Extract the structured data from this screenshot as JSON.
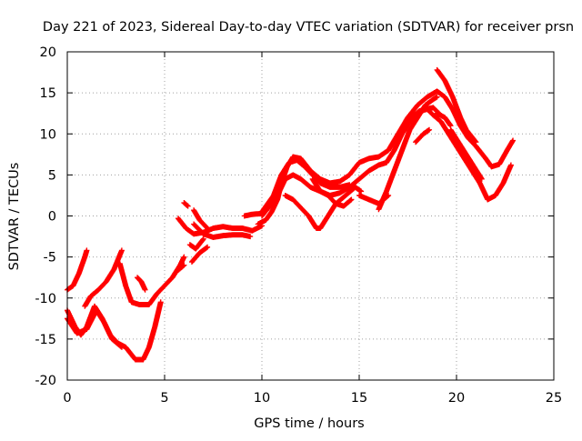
{
  "chart_data": {
    "type": "scatter",
    "title": "Day 221 of 2023, Sidereal Day-to-day VTEC variation (SDTVAR) for receiver prsn",
    "xlabel": "GPS time / hours",
    "ylabel": "SDTVAR / TECUs",
    "xlim": [
      0,
      25
    ],
    "ylim": [
      -20,
      20
    ],
    "xticks": [
      0,
      5,
      10,
      15,
      20,
      25
    ],
    "yticks": [
      -20,
      -15,
      -10,
      -5,
      0,
      5,
      10,
      15,
      20
    ],
    "grid": true,
    "marker": "+",
    "colors": {
      "series": "#ff0000",
      "axis": "#000000",
      "grid": "#a0a0a0"
    },
    "series": [
      {
        "points": [
          [
            0,
            -9
          ],
          [
            0.3,
            -8.5
          ],
          [
            0.6,
            -7
          ],
          [
            0.9,
            -5
          ],
          [
            1.0,
            -4.2
          ]
        ]
      },
      {
        "points": [
          [
            0,
            -11.5
          ],
          [
            0.4,
            -13.5
          ],
          [
            0.7,
            -14.5
          ],
          [
            1.0,
            -13.5
          ],
          [
            1.4,
            -11
          ],
          [
            1.8,
            -12.5
          ],
          [
            2.2,
            -14.5
          ],
          [
            2.6,
            -15.5
          ],
          [
            3.0,
            -16
          ],
          [
            3.5,
            -17.5
          ],
          [
            3.9,
            -17.5
          ],
          [
            4.2,
            -16
          ],
          [
            4.5,
            -13.5
          ],
          [
            4.8,
            -10.5
          ]
        ]
      },
      {
        "points": [
          [
            0,
            -12.5
          ],
          [
            0.5,
            -14.3
          ],
          [
            1.0,
            -13.8
          ],
          [
            1.5,
            -11.5
          ],
          [
            1.9,
            -13
          ],
          [
            2.3,
            -15
          ],
          [
            2.8,
            -16
          ]
        ]
      },
      {
        "points": [
          [
            0.9,
            -11
          ],
          [
            1.2,
            -9.8
          ],
          [
            1.6,
            -9
          ],
          [
            2.0,
            -8
          ],
          [
            2.4,
            -6.5
          ],
          [
            2.8,
            -4.2
          ]
        ]
      },
      {
        "points": [
          [
            2.7,
            -5.8
          ],
          [
            3.0,
            -8.5
          ],
          [
            3.3,
            -10.5
          ],
          [
            3.7,
            -10.8
          ],
          [
            4.2,
            -10.8
          ],
          [
            4.6,
            -9.5
          ],
          [
            5.0,
            -8.5
          ],
          [
            5.4,
            -7.5
          ],
          [
            5.8,
            -6
          ],
          [
            6.0,
            -5
          ]
        ]
      },
      {
        "points": [
          [
            3.6,
            -7.5
          ],
          [
            3.8,
            -8
          ],
          [
            4.0,
            -9
          ]
        ]
      },
      {
        "points": [
          [
            5.7,
            -6.6
          ],
          [
            6.0,
            -6
          ]
        ]
      },
      {
        "points": [
          [
            6.0,
            1.6
          ],
          [
            6.2,
            1.2
          ]
        ]
      },
      {
        "points": [
          [
            5.7,
            -0.3
          ],
          [
            6.1,
            -1.5
          ],
          [
            6.5,
            -2.2
          ],
          [
            7.0,
            -2
          ],
          [
            7.5,
            -1.5
          ],
          [
            8.0,
            -1.3
          ],
          [
            8.5,
            -1.5
          ],
          [
            9.0,
            -1.5
          ],
          [
            9.5,
            -1.8
          ],
          [
            10.0,
            -1.2
          ]
        ]
      },
      {
        "points": [
          [
            6.5,
            -1
          ],
          [
            7.0,
            -2.2
          ],
          [
            7.5,
            -2.6
          ],
          [
            8.0,
            -2.4
          ],
          [
            8.5,
            -2.3
          ],
          [
            9.0,
            -2.3
          ],
          [
            9.4,
            -2.5
          ]
        ]
      },
      {
        "points": [
          [
            6.3,
            -3.5
          ],
          [
            6.6,
            -4
          ],
          [
            7.0,
            -2.8
          ]
        ]
      },
      {
        "points": [
          [
            6.4,
            -5.6
          ],
          [
            6.8,
            -4.5
          ],
          [
            7.2,
            -3.8
          ]
        ]
      },
      {
        "points": [
          [
            6.5,
            0.7
          ],
          [
            6.8,
            -0.5
          ],
          [
            7.2,
            -1.5
          ]
        ]
      },
      {
        "points": [
          [
            9.1,
            0
          ],
          [
            9.5,
            0.2
          ],
          [
            10.0,
            0.3
          ]
        ]
      },
      {
        "points": [
          [
            9.8,
            -1
          ],
          [
            10.2,
            -0.5
          ],
          [
            10.5,
            0.5
          ],
          [
            10.8,
            2
          ],
          [
            11.0,
            4
          ],
          [
            11.3,
            6
          ],
          [
            11.6,
            7.2
          ],
          [
            12.0,
            7
          ],
          [
            12.5,
            5.5
          ],
          [
            13.0,
            4.5
          ],
          [
            13.5,
            4
          ],
          [
            14.0,
            4.2
          ],
          [
            14.5,
            5
          ],
          [
            15.0,
            6.5
          ],
          [
            15.5,
            7
          ],
          [
            16.0,
            7.2
          ],
          [
            16.5,
            8
          ],
          [
            17.0,
            10
          ],
          [
            17.5,
            12
          ],
          [
            18.0,
            13.5
          ],
          [
            18.5,
            14.5
          ],
          [
            19.0,
            15.2
          ],
          [
            19.4,
            14.5
          ],
          [
            19.8,
            13
          ],
          [
            20.2,
            11
          ],
          [
            20.6,
            9.5
          ],
          [
            21.0,
            8.5
          ],
          [
            21.5,
            7
          ],
          [
            21.8,
            6
          ],
          [
            22.2,
            6.3
          ],
          [
            22.6,
            8
          ],
          [
            22.9,
            9.2
          ]
        ]
      },
      {
        "points": [
          [
            10.0,
            0
          ],
          [
            10.5,
            1.5
          ],
          [
            10.9,
            3
          ],
          [
            11.2,
            4.5
          ],
          [
            11.6,
            5
          ],
          [
            12.0,
            4.5
          ],
          [
            12.5,
            3.5
          ],
          [
            13.0,
            3
          ],
          [
            13.5,
            2.5
          ],
          [
            14.0,
            2.8
          ],
          [
            14.5,
            3.5
          ],
          [
            15.0,
            4.5
          ],
          [
            15.5,
            5.5
          ],
          [
            16.0,
            6.2
          ],
          [
            16.4,
            6.5
          ],
          [
            16.8,
            8
          ],
          [
            17.2,
            10
          ],
          [
            17.6,
            11.5
          ],
          [
            18.0,
            12.5
          ],
          [
            18.4,
            13
          ],
          [
            18.8,
            13.2
          ],
          [
            19.1,
            12.5
          ]
        ]
      },
      {
        "points": [
          [
            10.0,
            0.5
          ],
          [
            10.6,
            2.5
          ],
          [
            11.0,
            5
          ],
          [
            11.4,
            6.5
          ],
          [
            11.8,
            6.8
          ],
          [
            12.2,
            6
          ],
          [
            12.6,
            5
          ],
          [
            13.0,
            4
          ],
          [
            13.5,
            3.5
          ],
          [
            14.0,
            3.5
          ],
          [
            14.5,
            3.8
          ]
        ]
      },
      {
        "points": [
          [
            11.2,
            2.5
          ],
          [
            11.6,
            2
          ],
          [
            12.0,
            1
          ],
          [
            12.4,
            0
          ],
          [
            12.8,
            -1.5
          ],
          [
            13.0,
            -1.5
          ],
          [
            13.4,
            0
          ],
          [
            13.8,
            1.5
          ],
          [
            14.3,
            2.5
          ],
          [
            14.8,
            3.5
          ],
          [
            15.1,
            3
          ]
        ]
      },
      {
        "points": [
          [
            12.6,
            4.5
          ],
          [
            13.0,
            3
          ],
          [
            13.4,
            2.5
          ],
          [
            13.8,
            1.5
          ],
          [
            14.2,
            1.2
          ],
          [
            14.6,
            2
          ]
        ]
      },
      {
        "points": [
          [
            15.0,
            2.5
          ],
          [
            15.5,
            2
          ],
          [
            16.0,
            1.5
          ],
          [
            16.5,
            2.5
          ]
        ]
      },
      {
        "points": [
          [
            16.0,
            0.8
          ],
          [
            16.4,
            3
          ],
          [
            16.8,
            5.5
          ],
          [
            17.2,
            8
          ],
          [
            17.6,
            10.5
          ],
          [
            18.0,
            12
          ],
          [
            18.4,
            13.5
          ],
          [
            18.8,
            14.2
          ],
          [
            19.0,
            14.5
          ]
        ]
      },
      {
        "points": [
          [
            17.3,
            11
          ],
          [
            17.7,
            12
          ],
          [
            18.1,
            12.8
          ],
          [
            18.5,
            13
          ],
          [
            18.8,
            12.3
          ],
          [
            19.2,
            11.5
          ],
          [
            19.6,
            10
          ],
          [
            20.0,
            8.5
          ],
          [
            20.4,
            7
          ],
          [
            20.8,
            5.5
          ],
          [
            21.2,
            4
          ],
          [
            21.6,
            2
          ],
          [
            22.0,
            2.5
          ],
          [
            22.4,
            4
          ],
          [
            22.8,
            6.2
          ]
        ]
      },
      {
        "points": [
          [
            17.9,
            9
          ],
          [
            18.3,
            10
          ],
          [
            18.6,
            10.5
          ]
        ]
      },
      {
        "points": [
          [
            19.0,
            17.8
          ],
          [
            19.4,
            16.5
          ],
          [
            19.8,
            14.5
          ],
          [
            20.2,
            12
          ],
          [
            20.5,
            10.5
          ],
          [
            21.0,
            9
          ]
        ]
      },
      {
        "points": [
          [
            19.0,
            12.5
          ],
          [
            19.4,
            12
          ],
          [
            19.7,
            11
          ]
        ]
      },
      {
        "points": [
          [
            19.7,
            10.5
          ],
          [
            20.1,
            9
          ],
          [
            20.5,
            7.5
          ],
          [
            20.9,
            6
          ],
          [
            21.3,
            4.5
          ]
        ]
      }
    ]
  }
}
